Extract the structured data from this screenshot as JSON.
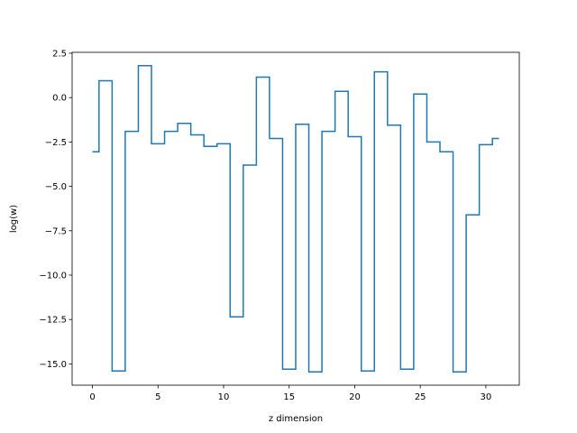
{
  "chart_data": {
    "type": "line",
    "drawstyle": "steps-mid",
    "title": "",
    "xlabel": "z dimension",
    "ylabel": "log(w)",
    "xlim": [
      -1.55,
      32.55
    ],
    "ylim": [
      -16.2,
      2.55
    ],
    "xticks": [
      0,
      5,
      10,
      15,
      20,
      25,
      30
    ],
    "xtick_labels": [
      "0",
      "5",
      "10",
      "15",
      "20",
      "25",
      "30"
    ],
    "yticks": [
      2.5,
      0.0,
      -2.5,
      -5.0,
      -7.5,
      -10.0,
      -12.5,
      -15.0
    ],
    "ytick_labels": [
      "2.5",
      "0.0",
      "−2.5",
      "−5.0",
      "−7.5",
      "−10.0",
      "−12.5",
      "−15.0"
    ],
    "grid": false,
    "line_color": "#1f77b4",
    "series": [
      {
        "x": [
          0,
          1,
          2,
          3,
          4,
          5,
          6,
          7,
          8,
          9,
          10,
          11,
          12,
          13,
          14,
          15,
          16,
          17,
          18,
          19,
          20,
          21,
          22,
          23,
          24,
          25,
          26,
          27,
          28,
          29,
          30,
          31
        ],
        "values": [
          -3.05,
          0.95,
          -15.4,
          -1.9,
          1.8,
          -2.6,
          -1.9,
          -1.45,
          -2.1,
          -2.75,
          -2.6,
          -12.35,
          -3.8,
          1.15,
          -2.3,
          -15.3,
          -1.5,
          -15.45,
          -1.9,
          0.35,
          -2.2,
          -15.4,
          1.45,
          -1.55,
          -15.3,
          0.2,
          -2.5,
          -3.05,
          -15.45,
          -6.6,
          -2.65,
          -2.3
        ]
      }
    ]
  }
}
